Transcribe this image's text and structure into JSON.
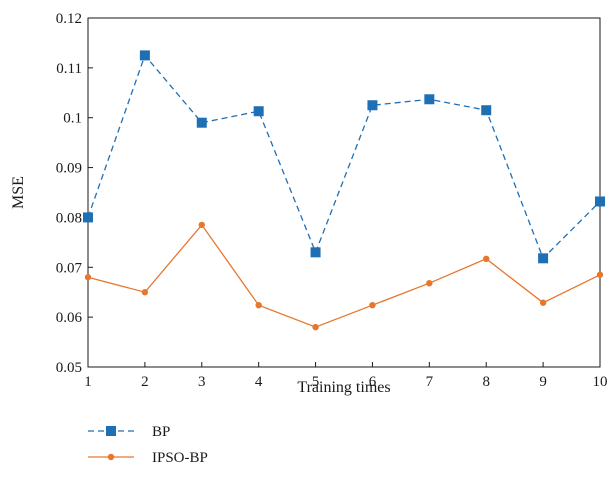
{
  "chart_data": {
    "type": "line",
    "title": "",
    "xlabel": "Training times",
    "ylabel": "MSE",
    "x": [
      1,
      2,
      3,
      4,
      5,
      6,
      7,
      8,
      9,
      10
    ],
    "xlim": [
      1,
      10
    ],
    "ylim": [
      0.05,
      0.12
    ],
    "xticks": [
      "1",
      "2",
      "3",
      "4",
      "5",
      "6",
      "7",
      "8",
      "9",
      "10"
    ],
    "yticks": [
      "0.05",
      "0.06",
      "0.07",
      "0.08",
      "0.09",
      "0.1",
      "0.11",
      "0.12"
    ],
    "grid": false,
    "legend_position": "bottom-left",
    "series": [
      {
        "name": "BP",
        "color": "#1f6fb4",
        "line_style": "dashed",
        "marker": "square",
        "values": [
          0.08,
          0.1125,
          0.099,
          0.1013,
          0.073,
          0.1025,
          0.1037,
          0.1015,
          0.0718,
          0.0832
        ]
      },
      {
        "name": "IPSO-BP",
        "color": "#e8772e",
        "line_style": "solid",
        "marker": "circle",
        "values": [
          0.068,
          0.065,
          0.0785,
          0.0624,
          0.058,
          0.0624,
          0.0668,
          0.0717,
          0.0629,
          0.0685
        ]
      }
    ]
  }
}
